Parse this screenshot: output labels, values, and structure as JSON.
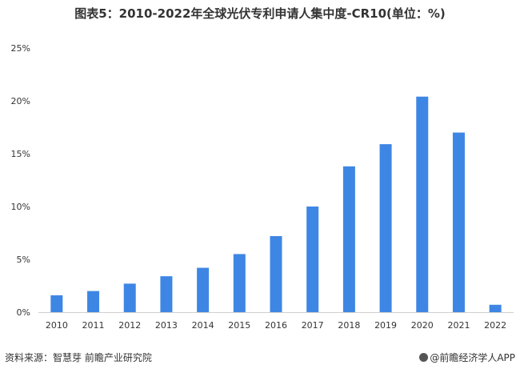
{
  "title": "图表5：2010-2022年全球光伏专利申请人集中度-CR10(单位：%)",
  "footer": {
    "source": "资料来源：智慧芽 前瞻产业研究院",
    "brand": "@前瞻经济学人APP"
  },
  "colors": {
    "bar": "#3e86e4",
    "axis": "#d0d0d0",
    "text": "#333333"
  },
  "chart_data": {
    "type": "bar",
    "categories": [
      "2010",
      "2011",
      "2012",
      "2013",
      "2014",
      "2015",
      "2016",
      "2017",
      "2018",
      "2019",
      "2020",
      "2021",
      "2022"
    ],
    "values": [
      1.6,
      2.0,
      2.7,
      3.4,
      4.2,
      5.5,
      7.2,
      10.0,
      13.8,
      15.9,
      20.4,
      17.0,
      0.7
    ],
    "ylim": [
      0,
      25
    ],
    "yticks": [
      0,
      5,
      10,
      15,
      20,
      25
    ],
    "ytick_labels": [
      "0%",
      "5%",
      "10%",
      "15%",
      "20%",
      "25%"
    ],
    "grid": false
  }
}
